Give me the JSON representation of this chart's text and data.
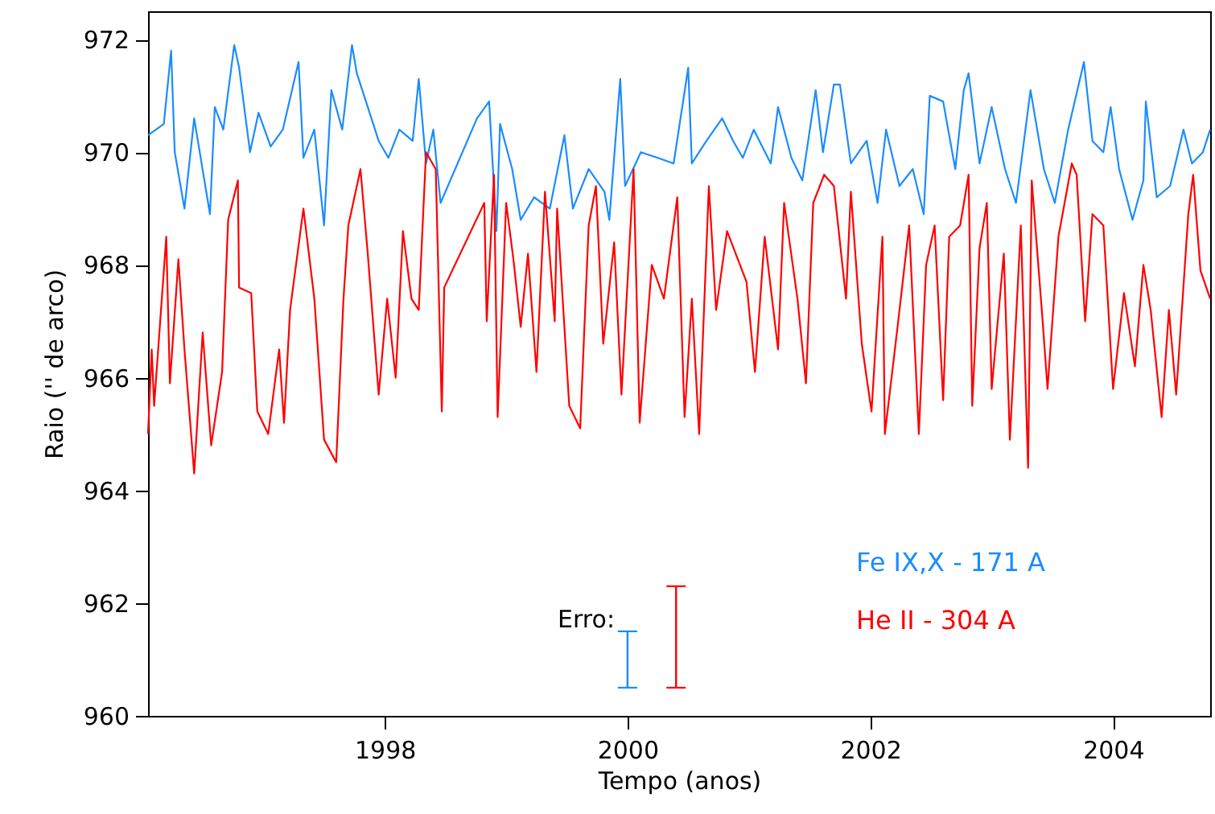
{
  "chart_data": {
    "type": "line",
    "xlabel": "Tempo (anos)",
    "ylabel": "Raio ('' de arco)",
    "xlim": [
      1996.05,
      2004.8
    ],
    "ylim": [
      960,
      972.5
    ],
    "xticks": [
      1998,
      2000,
      2002,
      2004
    ],
    "yticks": [
      960,
      962,
      964,
      966,
      968,
      970,
      972
    ],
    "grid": false,
    "legend": "bottom right",
    "line_style": "solid",
    "marker": "none",
    "annotations": [
      "Erro:"
    ],
    "series": [
      {
        "name": "Fe IX,X - 171 A",
        "color": "#1a8cff",
        "x": [
          1996.05,
          1996.18,
          1996.24,
          1996.27,
          1996.35,
          1996.43,
          1996.56,
          1996.6,
          1996.67,
          1996.76,
          1996.8,
          1996.89,
          1996.96,
          1997.06,
          1997.16,
          1997.29,
          1997.33,
          1997.42,
          1997.5,
          1997.56,
          1997.65,
          1997.73,
          1997.77,
          1997.86,
          1997.95,
          1998.03,
          1998.12,
          1998.23,
          1998.28,
          1998.34,
          1998.4,
          1998.46,
          1998.76,
          1998.86,
          1998.92,
          1998.95,
          1999.05,
          1999.12,
          1999.23,
          1999.36,
          1999.48,
          1999.55,
          1999.68,
          1999.81,
          1999.85,
          1999.94,
          1999.98,
          2000.11,
          2000.25,
          2000.38,
          2000.5,
          2000.53,
          2000.65,
          2000.78,
          2000.87,
          2000.95,
          2001.04,
          2001.18,
          2001.24,
          2001.35,
          2001.44,
          2001.55,
          2001.61,
          2001.7,
          2001.75,
          2001.84,
          2001.97,
          2002.06,
          2002.13,
          2002.24,
          2002.35,
          2002.44,
          2002.49,
          2002.6,
          2002.7,
          2002.77,
          2002.81,
          2002.9,
          2003.0,
          2003.11,
          2003.2,
          2003.32,
          2003.43,
          2003.52,
          2003.63,
          2003.76,
          2003.83,
          2003.92,
          2003.98,
          2004.05,
          2004.16,
          2004.25,
          2004.27,
          2004.36,
          2004.47,
          2004.58,
          2004.65,
          2004.74,
          2004.8
        ],
        "values": [
          970.3,
          970.5,
          971.8,
          970.0,
          969.0,
          970.6,
          968.9,
          970.8,
          970.4,
          971.9,
          971.5,
          970.0,
          970.7,
          970.1,
          970.4,
          971.6,
          969.9,
          970.4,
          968.7,
          971.1,
          970.4,
          971.9,
          971.4,
          970.8,
          970.2,
          969.9,
          970.4,
          970.2,
          971.3,
          969.8,
          970.4,
          969.1,
          970.6,
          970.9,
          968.6,
          970.5,
          969.7,
          968.8,
          969.2,
          969.0,
          970.3,
          969.0,
          969.7,
          969.3,
          968.8,
          971.3,
          969.4,
          970.0,
          969.9,
          969.8,
          971.5,
          969.8,
          970.2,
          970.6,
          970.2,
          969.9,
          970.4,
          969.8,
          970.8,
          969.9,
          969.5,
          971.1,
          970.0,
          971.2,
          971.2,
          969.8,
          970.2,
          969.1,
          970.4,
          969.4,
          969.7,
          968.9,
          971.0,
          970.9,
          969.7,
          971.1,
          971.4,
          969.8,
          970.8,
          969.7,
          969.1,
          971.1,
          969.7,
          969.1,
          970.4,
          971.6,
          970.2,
          970.0,
          970.8,
          969.7,
          968.8,
          969.5,
          970.9,
          969.2,
          969.4,
          970.4,
          969.8,
          970.0,
          970.4
        ]
      },
      {
        "name": "He II - 304 A",
        "color": "#ff0000",
        "x": [
          1996.05,
          1996.08,
          1996.1,
          1996.2,
          1996.23,
          1996.3,
          1996.35,
          1996.43,
          1996.5,
          1996.57,
          1996.66,
          1996.71,
          1996.79,
          1996.8,
          1996.9,
          1996.95,
          1997.04,
          1997.13,
          1997.17,
          1997.22,
          1997.33,
          1997.42,
          1997.5,
          1997.6,
          1997.66,
          1997.7,
          1997.8,
          1997.86,
          1997.95,
          1998.02,
          1998.09,
          1998.15,
          1998.22,
          1998.28,
          1998.34,
          1998.42,
          1998.47,
          1998.49,
          1998.82,
          1998.84,
          1998.9,
          1998.93,
          1999.0,
          1999.06,
          1999.12,
          1999.18,
          1999.25,
          1999.32,
          1999.4,
          1999.42,
          1999.52,
          1999.61,
          1999.68,
          1999.74,
          1999.8,
          1999.89,
          1999.95,
          2000.05,
          2000.1,
          2000.2,
          2000.3,
          2000.41,
          2000.47,
          2000.53,
          2000.59,
          2000.67,
          2000.73,
          2000.82,
          2000.98,
          2001.05,
          2001.13,
          2001.24,
          2001.29,
          2001.4,
          2001.47,
          2001.53,
          2001.62,
          2001.7,
          2001.8,
          2001.84,
          2001.93,
          2002.01,
          2002.1,
          2002.12,
          2002.23,
          2002.32,
          2002.4,
          2002.46,
          2002.53,
          2002.6,
          2002.65,
          2002.74,
          2002.81,
          2002.84,
          2002.9,
          2002.96,
          2003.0,
          2003.1,
          2003.15,
          2003.24,
          2003.3,
          2003.33,
          2003.42,
          2003.46,
          2003.55,
          2003.66,
          2003.7,
          2003.77,
          2003.83,
          2003.92,
          2004.0,
          2004.09,
          2004.18,
          2004.25,
          2004.31,
          2004.4,
          2004.46,
          2004.52,
          2004.62,
          2004.66,
          2004.72,
          2004.8
        ],
        "values": [
          965.0,
          966.5,
          965.5,
          968.5,
          965.9,
          968.1,
          966.5,
          964.3,
          966.8,
          964.8,
          966.1,
          968.8,
          969.5,
          967.6,
          967.5,
          965.4,
          965.0,
          966.5,
          965.2,
          967.2,
          969.0,
          967.4,
          964.9,
          964.5,
          967.4,
          968.7,
          969.7,
          968.2,
          965.7,
          967.4,
          966.0,
          968.6,
          967.4,
          967.2,
          970.0,
          969.7,
          965.4,
          967.6,
          969.1,
          967.0,
          969.6,
          965.3,
          969.1,
          968.1,
          966.9,
          968.2,
          966.1,
          969.3,
          967.0,
          969.0,
          965.5,
          965.1,
          968.7,
          969.4,
          966.6,
          968.4,
          965.7,
          969.7,
          965.2,
          968.0,
          967.4,
          969.2,
          965.3,
          967.4,
          965.0,
          969.4,
          967.2,
          968.6,
          967.7,
          966.1,
          968.5,
          966.5,
          969.1,
          967.4,
          965.9,
          969.1,
          969.6,
          969.4,
          967.4,
          969.3,
          966.6,
          965.4,
          968.5,
          965.0,
          967.0,
          968.7,
          965.0,
          968.0,
          968.7,
          965.6,
          968.5,
          968.7,
          969.6,
          965.5,
          968.3,
          969.1,
          965.8,
          968.2,
          964.9,
          968.7,
          964.4,
          969.5,
          967.0,
          965.8,
          968.5,
          969.8,
          969.6,
          967.0,
          968.9,
          968.7,
          965.8,
          967.5,
          966.2,
          968.0,
          967.2,
          965.3,
          967.2,
          965.7,
          968.9,
          969.6,
          967.9,
          967.4
        ]
      },
      {
        "type": "bar",
        "color": "#1a8cff",
        "x": [
          2000.0
        ],
        "base": [
          960.5
        ],
        "values": [
          1.0
        ]
      },
      {
        "type": "bar",
        "color": "#ff0000",
        "x": [
          2000.4
        ],
        "base": [
          960.5
        ],
        "values": [
          1.8
        ]
      }
    ]
  }
}
